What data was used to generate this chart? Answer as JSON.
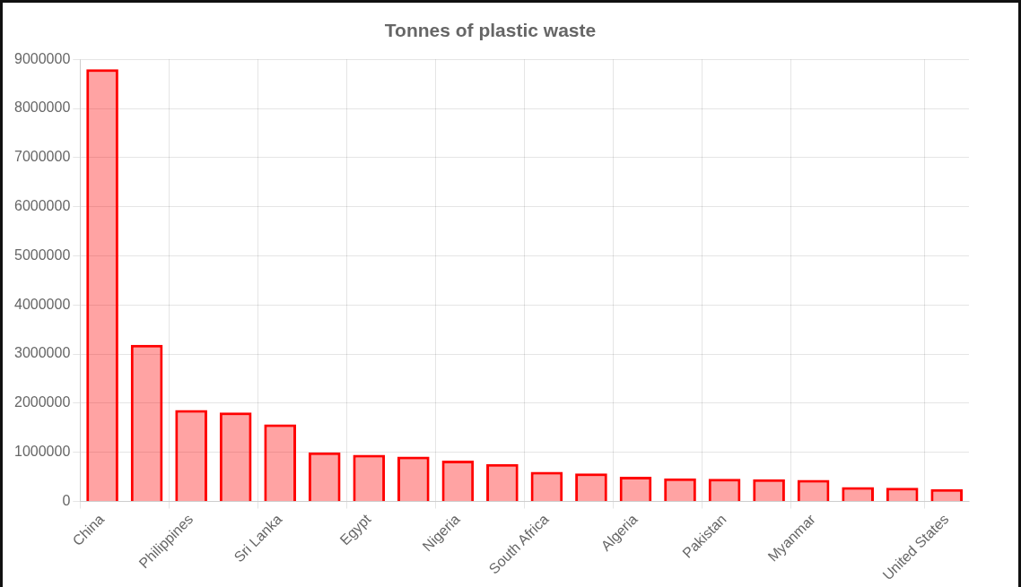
{
  "chart_data": {
    "type": "bar",
    "title": "Tonnes of plastic waste",
    "categories": [
      "China",
      null,
      "Philippines",
      null,
      "Sri Lanka",
      null,
      "Egypt",
      null,
      "Nigeria",
      null,
      "South Africa",
      null,
      "Algeria",
      null,
      "Pakistan",
      null,
      "Myanmar",
      null,
      null,
      "United States"
    ],
    "values": [
      8800000,
      3190000,
      1860000,
      1810000,
      1570000,
      1000000,
      950000,
      910000,
      830000,
      760000,
      600000,
      570000,
      500000,
      470000,
      460000,
      450000,
      440000,
      290000,
      280000,
      250000
    ],
    "color": "#ff0000",
    "ylim": [
      0,
      9000000
    ],
    "yticks": [
      0,
      1000000,
      2000000,
      3000000,
      4000000,
      5000000,
      6000000,
      7000000,
      8000000,
      9000000
    ],
    "grid": true,
    "legend": false
  }
}
